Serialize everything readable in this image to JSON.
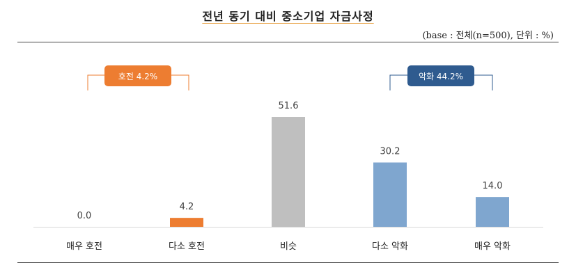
{
  "title": "전년 동기 대비 중소기업 자금사정",
  "subtitle": "(base : 전체(n=500), 단위 : %)",
  "groups": [
    {
      "label": "호전 4.2%",
      "color": "#ed7d31"
    },
    {
      "label": "악화 44.2%",
      "color": "#2f5b8f"
    }
  ],
  "chart_data": {
    "type": "bar",
    "categories": [
      "매우 호전",
      "다소 호전",
      "비슷",
      "다소 악화",
      "매우 악화"
    ],
    "values": [
      0.0,
      4.2,
      51.6,
      30.2,
      14.0
    ],
    "value_labels": [
      "0.0",
      "4.2",
      "51.6",
      "30.2",
      "14.0"
    ],
    "colors": [
      "#ed7d31",
      "#ed7d31",
      "#bfbfbf",
      "#7fa6cf",
      "#7fa6cf"
    ],
    "title": "전년 동기 대비 중소기업 자금사정",
    "xlabel": "",
    "ylabel": "",
    "ylim": [
      0,
      60
    ],
    "grid": false,
    "legend": "none"
  }
}
